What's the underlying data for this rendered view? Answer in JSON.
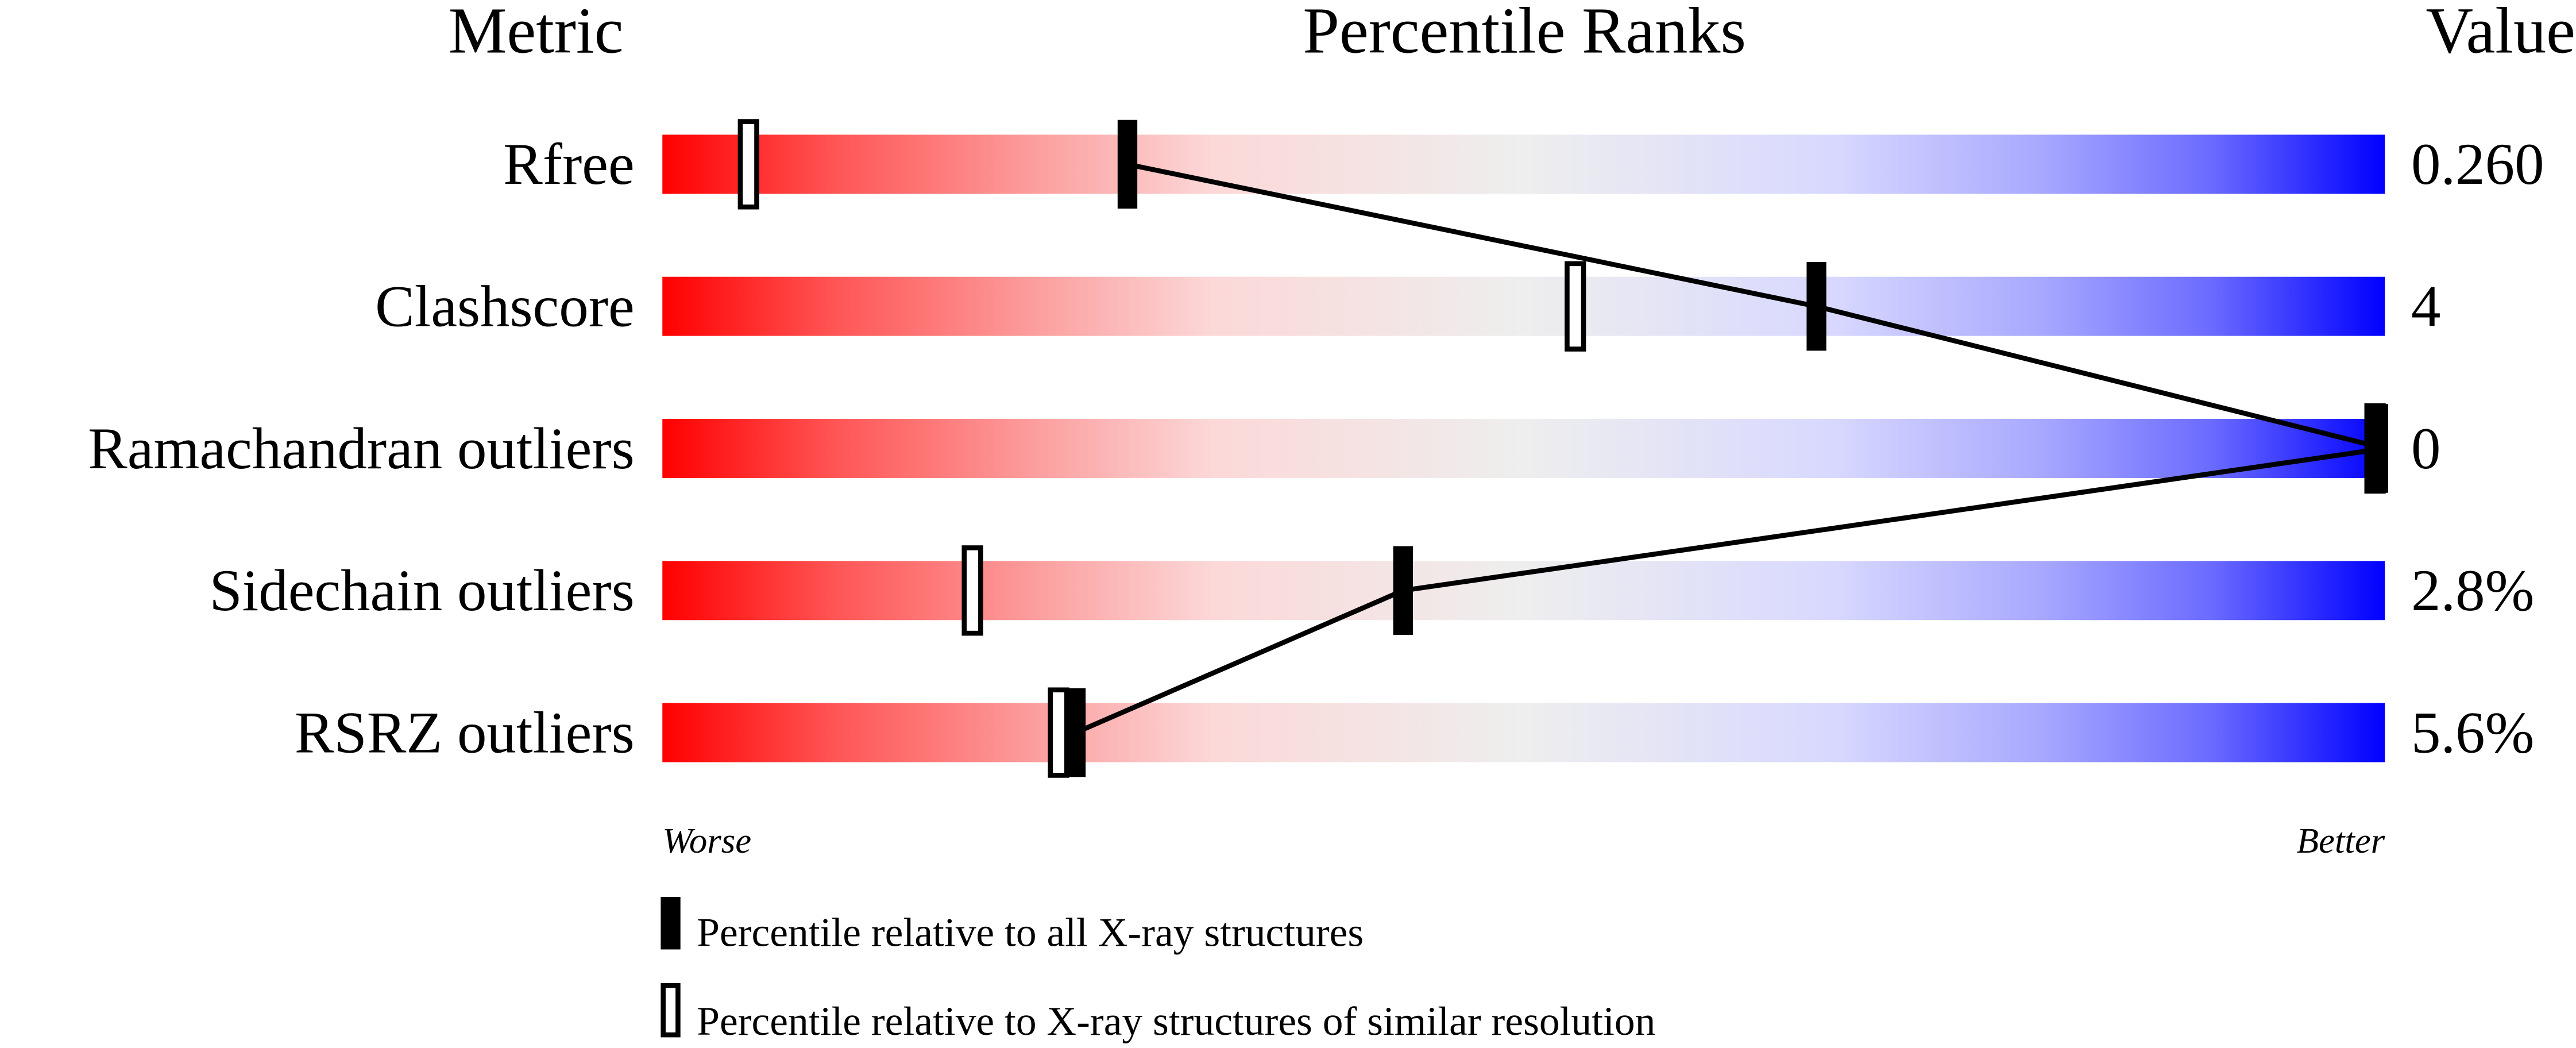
{
  "chart_data": {
    "type": "percentile-slider",
    "headers": {
      "metric": "Metric",
      "ranks": "Percentile Ranks",
      "value": "Value"
    },
    "xlim": [
      0,
      100
    ],
    "axis_labels": {
      "left": "Worse",
      "right": "Better"
    },
    "metrics": [
      {
        "name": "Rfree",
        "value": "0.260",
        "percentile_all": 27,
        "percentile_similar": 5
      },
      {
        "name": "Clashscore",
        "value": "4",
        "percentile_all": 67,
        "percentile_similar": 53
      },
      {
        "name": "Ramachandran outliers",
        "value": "0",
        "percentile_all": 100,
        "percentile_similar": 100
      },
      {
        "name": "Sidechain outliers",
        "value": "2.8%",
        "percentile_all": 43,
        "percentile_similar": 18
      },
      {
        "name": "RSRZ outliers",
        "value": "5.6%",
        "percentile_all": 24,
        "percentile_similar": 23
      }
    ],
    "legend": [
      {
        "marker": "filled",
        "label": "Percentile relative to all X-ray structures"
      },
      {
        "marker": "open",
        "label": "Percentile relative to X-ray structures of similar resolution"
      }
    ],
    "colors": {
      "worse": "#ff0000",
      "middle": "#eeeeee",
      "better": "#0000ff"
    }
  }
}
